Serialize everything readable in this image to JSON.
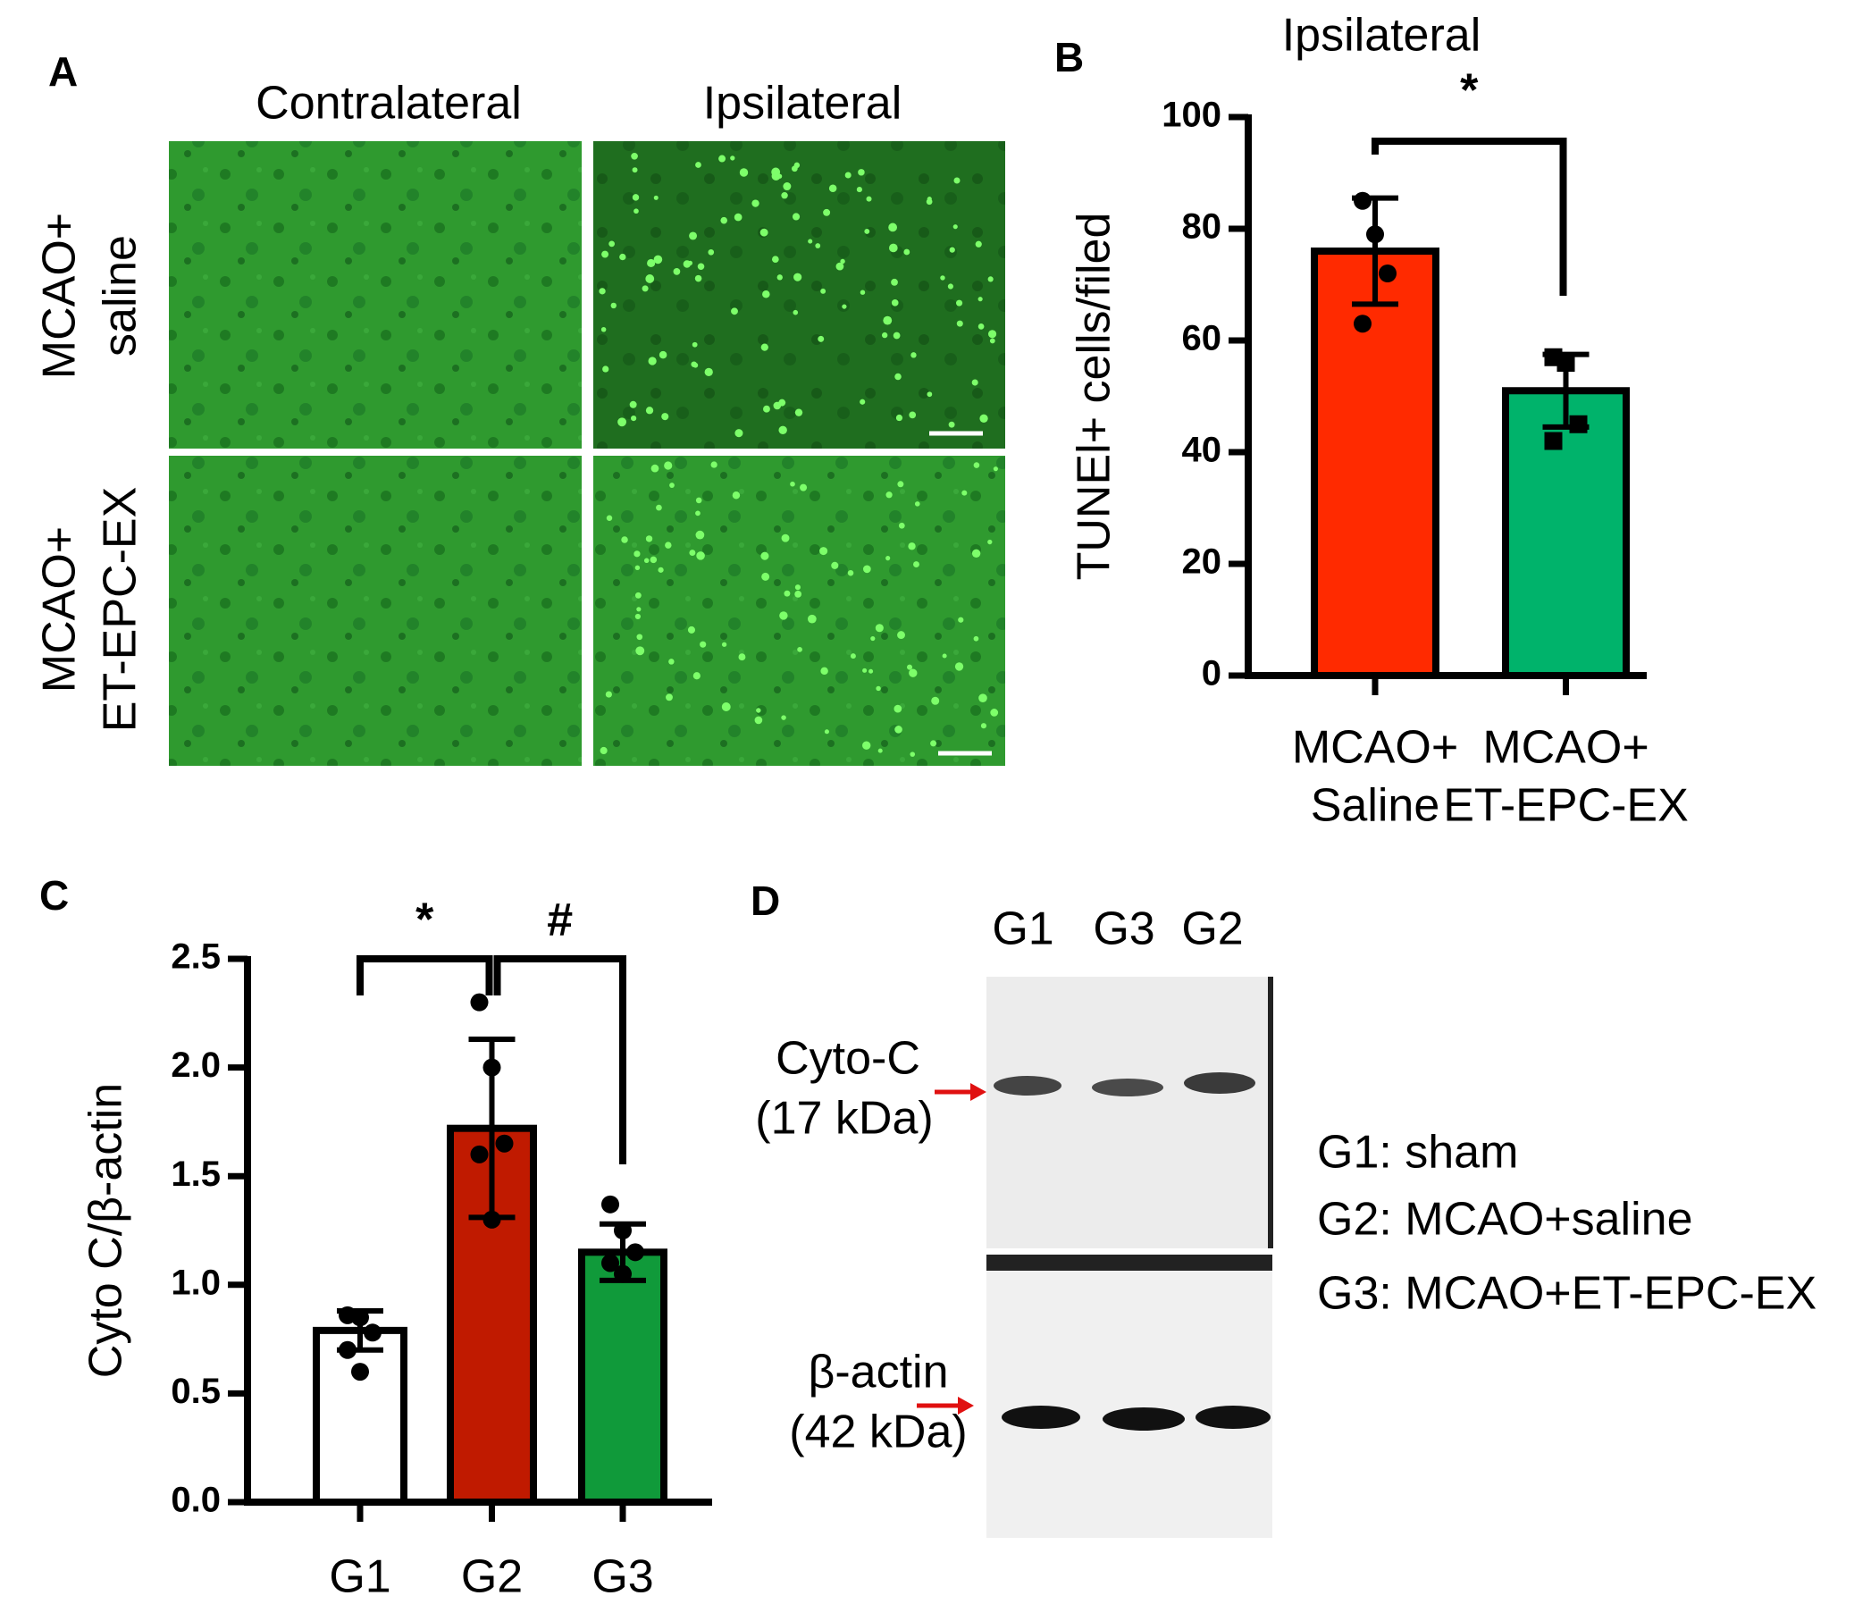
{
  "panel_labels": [
    "A",
    "B",
    "C",
    "D"
  ],
  "panel_a": {
    "columns": [
      "Contralateral",
      "Ipsilateral"
    ],
    "rows": [
      [
        "MCAO+",
        "saline"
      ],
      [
        "MCAO+",
        "ET-EPC-EX"
      ]
    ]
  },
  "chart_data": [
    {
      "type": "bar",
      "title": "Ipsilateral",
      "ylabel": "TUNEl+ cells/filed",
      "categories": [
        [
          "MCAO+",
          "Saline"
        ],
        [
          "MCAO+",
          "ET-EPC-EX"
        ]
      ],
      "values": [
        76,
        51
      ],
      "errors": [
        9.5,
        6.5
      ],
      "colors": [
        "#ff2a00",
        "#00b36b"
      ],
      "markers": [
        "circle",
        "square"
      ],
      "points": [
        [
          85,
          79,
          72,
          63
        ],
        [
          57,
          56,
          45,
          42
        ]
      ],
      "ylim": [
        0,
        100
      ],
      "yticks": [
        0,
        20,
        40,
        60,
        80,
        100
      ],
      "grid": false,
      "annotations": [
        {
          "text": "*",
          "from": 0,
          "to": 1
        }
      ]
    },
    {
      "type": "bar",
      "ylabel": "Cyto C/β-actin",
      "categories": [
        [
          "G1"
        ],
        [
          "G2"
        ],
        [
          "G3"
        ]
      ],
      "values": [
        0.79,
        1.72,
        1.15
      ],
      "errors": [
        0.09,
        0.41,
        0.13
      ],
      "colors": [
        "#ffffff",
        "#c01a00",
        "#109a3a"
      ],
      "markers": [
        "circle",
        "circle",
        "circle"
      ],
      "points": [
        [
          0.86,
          0.85,
          0.78,
          0.7,
          0.6
        ],
        [
          2.3,
          2.0,
          1.65,
          1.6,
          1.3
        ],
        [
          1.37,
          1.25,
          1.15,
          1.1,
          1.05
        ]
      ],
      "ylim": [
        0,
        2.5
      ],
      "yticks": [
        {
          "value": 0,
          "label": "0.0"
        },
        0.5,
        {
          "value": 1,
          "label": "1.0"
        },
        1.5,
        {
          "value": 2,
          "label": "2.0"
        },
        2.5
      ],
      "grid": false,
      "annotations": [
        {
          "text": "*",
          "from": 0,
          "to": 1
        },
        {
          "text": "#",
          "from": 1,
          "to": 2
        }
      ]
    }
  ],
  "panel_d": {
    "lanes": [
      "G1",
      "G3",
      "G2"
    ],
    "bands": [
      [
        "Cyto-C",
        "(17 kDa)"
      ],
      [
        "β-actin",
        "(42 kDa)"
      ]
    ],
    "legend": [
      "G1: sham",
      "G2: MCAO+saline",
      "G3: MCAO+ET-EPC-EX"
    ]
  }
}
